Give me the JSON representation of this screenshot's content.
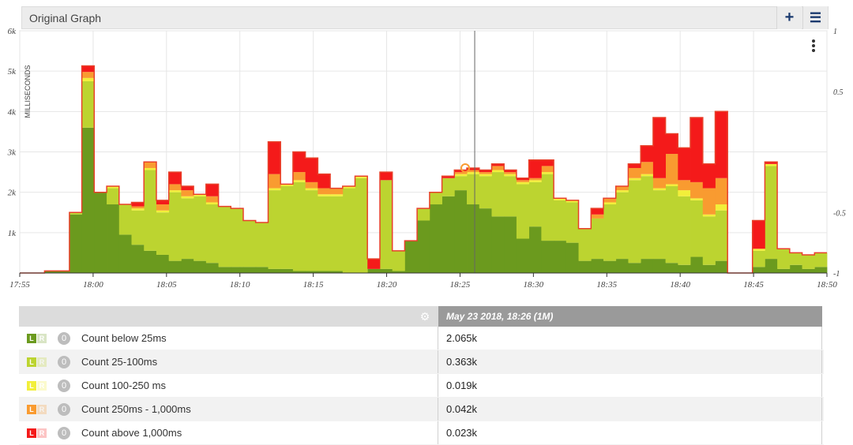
{
  "panel": {
    "title": "Original Graph",
    "add_icon": "plus-icon",
    "menu_icon": "hamburger-icon"
  },
  "colors": {
    "below25": "#6b9a1e",
    "c25_100": "#bcd430",
    "c100_250": "#f2ef3a",
    "c250_1000": "#f99b30",
    "above1000": "#f41a1a",
    "outline": "#e8402a"
  },
  "chart_data": {
    "type": "area",
    "stacked": true,
    "ylabel": "MILLISECONDS",
    "ylim": [
      0,
      6000
    ],
    "y_ticks": [
      "1k",
      "2k",
      "3k",
      "4k",
      "5k",
      "6k"
    ],
    "y2_ticks": [
      "1",
      "0.5",
      "-0.5",
      "-1"
    ],
    "x_ticks": [
      "17:55",
      "18:00",
      "18:05",
      "18:10",
      "18:15",
      "18:20",
      "18:25",
      "18:30",
      "18:35",
      "18:40",
      "18:45",
      "18:50"
    ],
    "x_start": "17:55",
    "x_end": "18:50",
    "cursor_time": "18:26",
    "grid": true,
    "series": [
      {
        "name": "Count below 25ms",
        "values": [
          0,
          0,
          50,
          50,
          1450,
          3600,
          2000,
          1700,
          950,
          700,
          550,
          450,
          300,
          350,
          300,
          250,
          150,
          150,
          150,
          150,
          100,
          100,
          50,
          50,
          50,
          50,
          0,
          0,
          100,
          100,
          50,
          800,
          1300,
          1700,
          1900,
          2050,
          1700,
          1600,
          1400,
          1400,
          850,
          1150,
          800,
          800,
          750,
          300,
          350,
          300,
          350,
          250,
          350,
          350,
          250,
          200,
          400,
          200,
          300,
          0,
          0,
          150,
          350,
          100,
          200,
          100,
          150
        ]
      },
      {
        "name": "Count 25-100ms",
        "values": [
          0,
          0,
          0,
          0,
          50,
          1150,
          0,
          400,
          750,
          850,
          2000,
          1050,
          1700,
          1500,
          1600,
          1450,
          1500,
          1450,
          1150,
          1100,
          1950,
          2050,
          2200,
          2000,
          1850,
          1850,
          2100,
          2350,
          0,
          2200,
          500,
          0,
          300,
          300,
          450,
          350,
          750,
          800,
          1100,
          1000,
          1350,
          1100,
          1650,
          1000,
          1000,
          800,
          1000,
          1400,
          1650,
          2050,
          2050,
          1700,
          1900,
          1700,
          1400,
          1200,
          1250,
          0,
          0,
          400,
          2300,
          500,
          300,
          350,
          350
        ]
      },
      {
        "name": "Count 100-250 ms",
        "values": [
          0,
          0,
          0,
          0,
          0,
          80,
          0,
          50,
          0,
          50,
          50,
          50,
          50,
          50,
          50,
          50,
          0,
          0,
          0,
          0,
          50,
          50,
          50,
          50,
          50,
          50,
          50,
          50,
          0,
          0,
          0,
          0,
          0,
          0,
          0,
          50,
          50,
          50,
          50,
          50,
          50,
          50,
          50,
          50,
          50,
          0,
          0,
          50,
          50,
          50,
          50,
          50,
          50,
          150,
          50,
          50,
          150,
          0,
          0,
          50,
          50,
          0,
          0,
          0,
          0
        ]
      },
      {
        "name": "Count 250ms - 1,000ms",
        "values": [
          0,
          0,
          0,
          0,
          0,
          150,
          0,
          0,
          0,
          50,
          150,
          150,
          150,
          150,
          0,
          150,
          0,
          0,
          0,
          0,
          350,
          0,
          200,
          150,
          150,
          150,
          0,
          0,
          0,
          0,
          0,
          0,
          0,
          0,
          0,
          50,
          50,
          50,
          100,
          50,
          50,
          50,
          150,
          0,
          0,
          0,
          100,
          100,
          100,
          250,
          300,
          250,
          750,
          250,
          400,
          650,
          650,
          0,
          0,
          0,
          0,
          0,
          0,
          0,
          0
        ]
      },
      {
        "name": "Count above 1,000ms",
        "values": [
          0,
          0,
          0,
          0,
          0,
          150,
          0,
          0,
          0,
          100,
          0,
          100,
          300,
          100,
          0,
          300,
          0,
          0,
          0,
          0,
          800,
          0,
          500,
          600,
          350,
          0,
          0,
          0,
          250,
          200,
          0,
          0,
          0,
          0,
          50,
          50,
          50,
          50,
          50,
          50,
          50,
          450,
          150,
          0,
          0,
          0,
          150,
          0,
          0,
          100,
          400,
          1500,
          500,
          800,
          1600,
          600,
          1650,
          0,
          0,
          700,
          50,
          0,
          0,
          0,
          0
        ]
      }
    ],
    "cursor_markers": "18:26"
  },
  "table": {
    "header_date": "May 23 2018, 18:26  (1M)",
    "gear_icon": "settings-gear-icon",
    "rows": [
      {
        "l": "L",
        "r": "R",
        "zero": "0",
        "label": "Count below 25ms",
        "value": "2.065k",
        "color": "#6b9a1e"
      },
      {
        "l": "L",
        "r": "R",
        "zero": "0",
        "label": "Count 25-100ms",
        "value": "0.363k",
        "color": "#bcd430"
      },
      {
        "l": "L",
        "r": "R",
        "zero": "0",
        "label": "Count 100-250 ms",
        "value": "0.019k",
        "color": "#f2ef3a"
      },
      {
        "l": "L",
        "r": "R",
        "zero": "0",
        "label": "Count 250ms - 1,000ms",
        "value": "0.042k",
        "color": "#f99b30"
      },
      {
        "l": "L",
        "r": "R",
        "zero": "0",
        "label": "Count above 1,000ms",
        "value": "0.023k",
        "color": "#f41a1a"
      }
    ]
  }
}
